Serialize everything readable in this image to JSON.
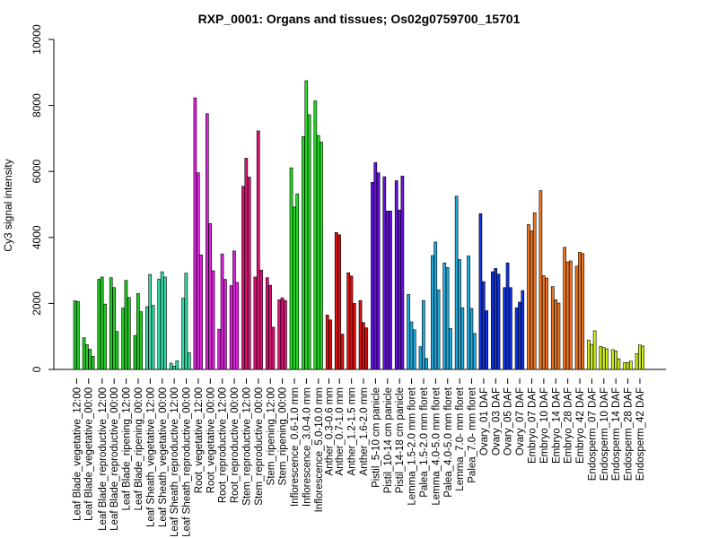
{
  "chart_data": {
    "type": "bar",
    "title": "RXP_0001: Organs and tissues; Os02g0759700_15701",
    "ylabel": "Cy3 signal intensity",
    "xlabel": "",
    "ylim": [
      0,
      10000
    ],
    "yticks": [
      0,
      2000,
      4000,
      6000,
      8000,
      10000
    ],
    "grid": false,
    "legend": "none",
    "groups": [
      {
        "label": "Leaf Blade_vegetative_12:00",
        "color": "#22cc22",
        "values": [
          2080,
          2060
        ]
      },
      {
        "label": "Leaf Blade_vegetative_00:00",
        "color": "#22cc22",
        "values": [
          960,
          750,
          610,
          400
        ]
      },
      {
        "label": "Leaf Blade_reproductive_12:00",
        "color": "#22cc22",
        "values": [
          2730,
          2800,
          1980
        ]
      },
      {
        "label": "Leaf Blade_reproductive_00:00",
        "color": "#22cc22",
        "values": [
          2780,
          2480,
          1150
        ]
      },
      {
        "label": "Leaf Blade_ripening_12:00",
        "color": "#22cc22",
        "values": [
          1860,
          2700,
          2180
        ]
      },
      {
        "label": "Leaf Blade_ripening_00:00",
        "color": "#22cc22",
        "values": [
          1030,
          2300,
          1750
        ]
      },
      {
        "label": "Leaf Sheath_vegetative_12:00",
        "color": "#33ddaa",
        "values": [
          1900,
          2880,
          1940
        ]
      },
      {
        "label": "Leaf Sheath_vegetative_00:00",
        "color": "#33ddaa",
        "values": [
          2740,
          2960,
          2800
        ]
      },
      {
        "label": "Leaf Sheath_reproductive_12:00",
        "color": "#33ddaa",
        "values": [
          190,
          100,
          260
        ]
      },
      {
        "label": "Leaf Sheath_reproductive_00:00",
        "color": "#33ddaa",
        "values": [
          2160,
          2920,
          510
        ]
      },
      {
        "label": "Root_vegetative_12:00",
        "color": "#dd22dd",
        "values": [
          8230,
          5960,
          3470
        ]
      },
      {
        "label": "Root_vegetative_00:00",
        "color": "#dd22dd",
        "values": [
          7750,
          4420,
          2990
        ]
      },
      {
        "label": "Root_reproductive_12:00",
        "color": "#dd22dd",
        "values": [
          1220,
          3500,
          2730
        ]
      },
      {
        "label": "Root_reproductive_00:00",
        "color": "#dd22dd",
        "values": [
          2540,
          3590,
          2640
        ]
      },
      {
        "label": "Stem_reproductive_12:00",
        "color": "#dd1177",
        "values": [
          5550,
          6400,
          5830
        ]
      },
      {
        "label": "Stem_reproductive_00:00",
        "color": "#dd1177",
        "values": [
          2800,
          7230,
          3010
        ]
      },
      {
        "label": "Stem_ripening_12:00",
        "color": "#dd1177",
        "values": [
          2780,
          2550,
          1280
        ]
      },
      {
        "label": "Stem_ripening_00:00",
        "color": "#dd1177",
        "values": [
          2110,
          2170,
          2090
        ]
      },
      {
        "label": "Inflorescence_0.6-1.0 mm",
        "color": "#22dd22",
        "values": [
          6110,
          4920,
          5320
        ]
      },
      {
        "label": "Inflorescence_3.0-4.0 mm",
        "color": "#22dd22",
        "values": [
          7060,
          8750,
          7720
        ]
      },
      {
        "label": "Inflorescence_5.0-10.0 mm",
        "color": "#22dd22",
        "values": [
          8140,
          7090,
          6890
        ]
      },
      {
        "label": "Anther_0.3-0.6 mm",
        "color": "#dd1111",
        "values": [
          1650,
          1500
        ]
      },
      {
        "label": "Anther_0.7-1.0 mm",
        "color": "#dd1111",
        "values": [
          4150,
          4080,
          1070
        ]
      },
      {
        "label": "Anther_1.2-1.5 mm",
        "color": "#dd1111",
        "values": [
          2930,
          2830,
          2000
        ]
      },
      {
        "label": "Anther_1.6-2.0 mm",
        "color": "#dd1111",
        "values": [
          2090,
          1420,
          1260
        ]
      },
      {
        "label": "Pistil_5-10 cm panicle",
        "color": "#6611dd",
        "values": [
          5670,
          6270,
          5960
        ]
      },
      {
        "label": "Pistil_10-14 cm panicle",
        "color": "#6611dd",
        "values": [
          5840,
          4800,
          4800
        ]
      },
      {
        "label": "Pistil_14-18 cm panicle",
        "color": "#6611dd",
        "values": [
          5720,
          4830,
          5860
        ]
      },
      {
        "label": "Lemma_1.5-2.0 mm floret",
        "color": "#22aadd",
        "values": [
          2270,
          1440,
          1200
        ]
      },
      {
        "label": "Palea_1.5-2.0 mm floret",
        "color": "#22aadd",
        "values": [
          690,
          2090,
          330
        ]
      },
      {
        "label": "Lemma_4.0-5.0 mm floret",
        "color": "#22aadd",
        "values": [
          3450,
          3860,
          2410
        ]
      },
      {
        "label": "Palea_4.0-5.0 mm floret",
        "color": "#22aadd",
        "values": [
          3230,
          3090,
          1240
        ]
      },
      {
        "label": "Lemma_7.0- mm floret",
        "color": "#22aadd",
        "values": [
          5250,
          3330,
          1870
        ]
      },
      {
        "label": "Palea_7.0- mm floret",
        "color": "#22aadd",
        "values": [
          3440,
          1850,
          1090
        ]
      },
      {
        "label": "Ovary_01 DAF",
        "color": "#1133dd",
        "values": [
          4720,
          2660,
          1780
        ]
      },
      {
        "label": "Ovary_03 DAF",
        "color": "#1133dd",
        "values": [
          2960,
          3060,
          2890
        ]
      },
      {
        "label": "Ovary_05 DAF",
        "color": "#1133dd",
        "values": [
          2480,
          3230,
          2480
        ]
      },
      {
        "label": "Ovary_07 DAF",
        "color": "#1133dd",
        "values": [
          1870,
          2040,
          2390
        ]
      },
      {
        "label": "Embryo_07 DAF",
        "color": "#ee7722",
        "values": [
          4390,
          4200,
          4750
        ]
      },
      {
        "label": "Embryo_10 DAF",
        "color": "#ee7722",
        "values": [
          5420,
          2840,
          2770
        ]
      },
      {
        "label": "Embryo_14 DAF",
        "color": "#ee7722",
        "values": [
          2510,
          2110,
          2010
        ]
      },
      {
        "label": "Embryo_28 DAF",
        "color": "#ee7722",
        "values": [
          3700,
          3260,
          3290
        ]
      },
      {
        "label": "Embryo_42 DAF",
        "color": "#ee7722",
        "values": [
          3130,
          3550,
          3510
        ]
      },
      {
        "label": "Endosperm_07 DAF",
        "color": "#ccee22",
        "values": [
          890,
          760,
          1170
        ]
      },
      {
        "label": "Endosperm_10 DAF",
        "color": "#ccee22",
        "values": [
          700,
          660,
          620
        ]
      },
      {
        "label": "Endosperm_14 DAF",
        "color": "#ccee22",
        "values": [
          600,
          560,
          320
        ]
      },
      {
        "label": "Endosperm_28 DAF",
        "color": "#ccee22",
        "values": [
          210,
          210,
          250
        ]
      },
      {
        "label": "Endosperm_42 DAF",
        "color": "#ccee22",
        "values": [
          480,
          740,
          710
        ]
      }
    ]
  }
}
